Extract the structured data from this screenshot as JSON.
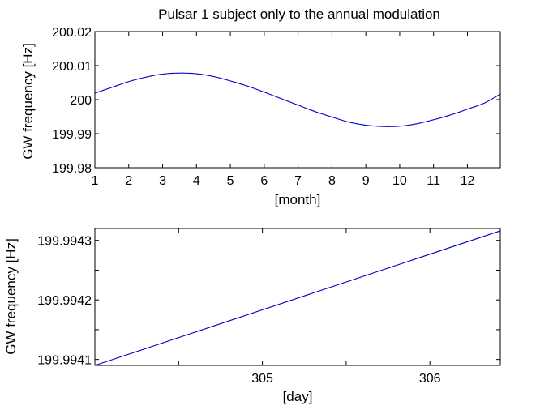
{
  "figure": {
    "title": "Pulsar 1 subject only to the annual modulation"
  },
  "chart_data": [
    {
      "type": "line",
      "title": "Pulsar 1 subject only to the annual modulation",
      "xlabel": "[month]",
      "ylabel": "GW frequency [Hz]",
      "xlim": [
        1,
        12.97
      ],
      "ylim": [
        199.98,
        200.02
      ],
      "x_ticks": [
        1,
        2,
        3,
        4,
        5,
        6,
        7,
        8,
        9,
        10,
        11,
        12
      ],
      "x_tick_labels": [
        "1",
        "2",
        "3",
        "4",
        "5",
        "6",
        "7",
        "8",
        "9",
        "10",
        "11",
        "12"
      ],
      "y_ticks": [
        199.98,
        199.99,
        200.0,
        200.01,
        200.02
      ],
      "y_tick_labels": [
        "199.98",
        "199.99",
        "200",
        "200.01",
        "200.02"
      ],
      "grid": false,
      "line_color": "#0000c8",
      "series": [
        {
          "x": [
            1,
            1.5,
            2,
            2.5,
            3,
            3.5,
            4,
            4.5,
            5,
            5.5,
            6,
            6.5,
            7,
            7.5,
            8,
            8.5,
            9,
            9.5,
            10,
            10.5,
            11,
            11.5,
            12,
            12.5,
            12.97
          ],
          "values": [
            200.0019,
            200.0036,
            200.0053,
            200.0066,
            200.0075,
            200.0078,
            200.0076,
            200.0068,
            200.0055,
            200.004,
            200.0022,
            200.0003,
            199.9984,
            199.9965,
            199.9949,
            199.9934,
            199.9925,
            199.9921,
            199.9922,
            199.9929,
            199.9941,
            199.9955,
            199.9972,
            199.999,
            200.0016
          ]
        }
      ]
    },
    {
      "type": "line",
      "xlabel": "[day]",
      "ylabel": "GW frequency [Hz]",
      "xlim": [
        304.0,
        306.42
      ],
      "ylim": [
        199.99409,
        199.99432
      ],
      "x_ticks": [
        304.5,
        305,
        305.5,
        306
      ],
      "x_tick_labels": [
        "",
        "305",
        "",
        "306"
      ],
      "y_ticks": [
        199.9941,
        199.99415,
        199.9942,
        199.99425,
        199.9943
      ],
      "y_tick_labels": [
        "199.9941",
        "",
        "199.9942",
        "",
        "199.9943"
      ],
      "grid": false,
      "line_color": "#0000c8",
      "series": [
        {
          "x": [
            304.0,
            306.42
          ],
          "values": [
            199.99409,
            199.994316
          ]
        }
      ]
    }
  ]
}
